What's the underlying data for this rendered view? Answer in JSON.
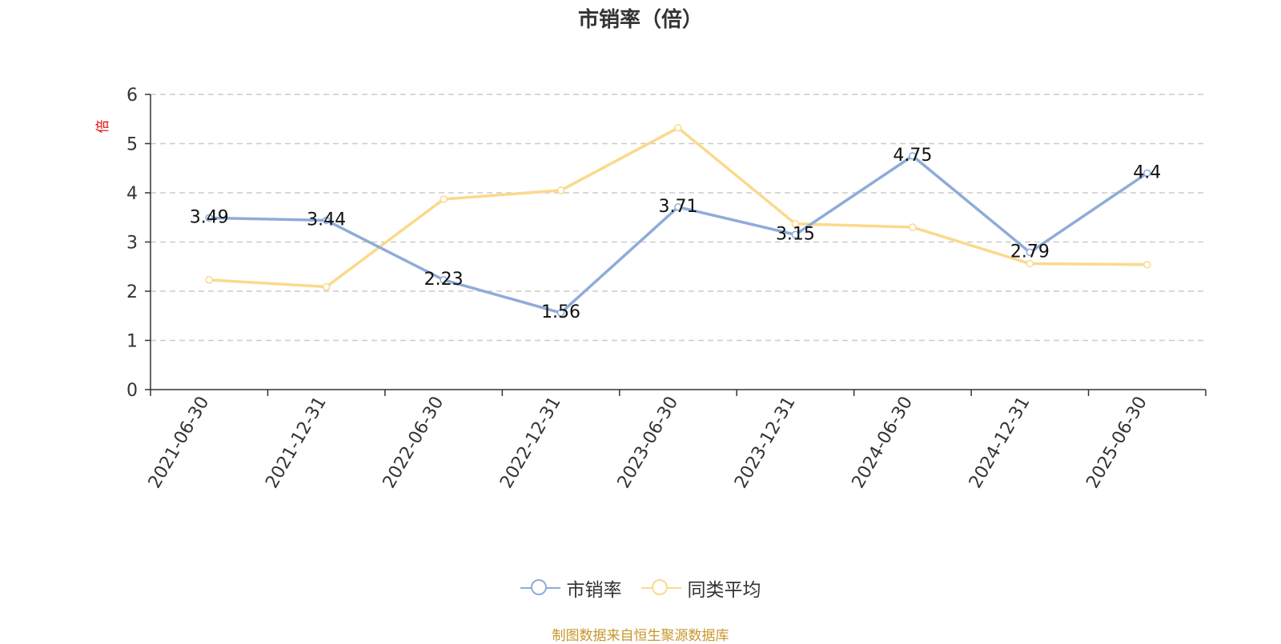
{
  "chart_data": {
    "type": "line",
    "title": "市销率（倍）",
    "ylabel": "倍",
    "xlabel": "",
    "categories": [
      "2021-06-30",
      "2021-12-31",
      "2022-06-30",
      "2022-12-31",
      "2023-06-30",
      "2023-12-31",
      "2024-06-30",
      "2024-12-31",
      "2025-06-30"
    ],
    "ylim": [
      0,
      6
    ],
    "yticks": [
      0,
      1,
      2,
      3,
      4,
      5,
      6
    ],
    "grid": true,
    "legend_position": "bottom",
    "series": [
      {
        "name": "市销率",
        "color": "#8eacd8",
        "values": [
          3.49,
          3.44,
          2.23,
          1.56,
          3.71,
          3.15,
          4.75,
          2.79,
          4.4
        ],
        "labels": [
          "3.49",
          "3.44",
          "2.23",
          "1.56",
          "3.71",
          "3.15",
          "4.75",
          "2.79",
          "4.4"
        ]
      },
      {
        "name": "同类平均",
        "color": "#fbd98c",
        "values": [
          2.23,
          2.09,
          3.87,
          4.05,
          5.32,
          3.37,
          3.3,
          2.56,
          2.54
        ]
      }
    ]
  },
  "source_note": "制图数据来自恒生聚源数据库",
  "colors": {
    "title": "#333333",
    "axis": "#333333",
    "grid": "#cccccc",
    "ylabel": "#e60000",
    "source_note": "#c8962d"
  }
}
